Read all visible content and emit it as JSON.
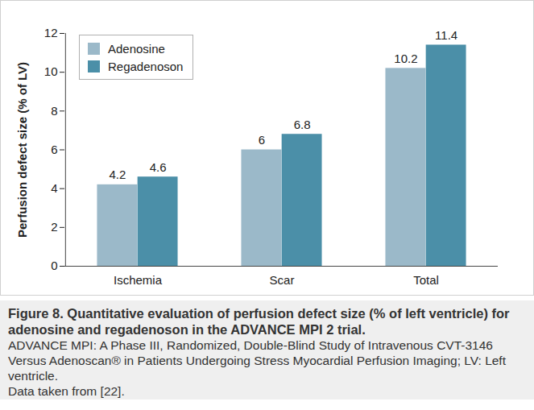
{
  "chart_data": {
    "type": "bar",
    "title": "Figure 8. Quantitative evaluation of perfusion defect size (% of left ventricle) for adenosine and regadenoson in the ADVANCE MPI 2 trial.",
    "notes": [
      "ADVANCE MPI: A Phase III, Randomized, Double-Blind Study of Intravenous CVT-3146 Versus Adenoscan® in Patients Undergoing Stress Myocardial Perfusion Imaging; LV: Left ventricle.",
      "Data taken from [22]."
    ],
    "y_label": "Perfusion defect size (% of LV)",
    "categories": [
      "Ischemia",
      "Scar",
      "Total"
    ],
    "series": [
      {
        "name": "Adenosine",
        "color": "#9bb9c9",
        "values": [
          4.2,
          6,
          10.2
        ]
      },
      {
        "name": "Regadenoson",
        "color": "#4b8fa8",
        "values": [
          4.6,
          6.8,
          11.4
        ]
      }
    ],
    "ylim": [
      0,
      12
    ],
    "yticks": [
      0,
      2,
      4,
      6,
      8,
      10,
      12
    ],
    "grid": false,
    "legend": "top-left",
    "data_labels": true
  }
}
